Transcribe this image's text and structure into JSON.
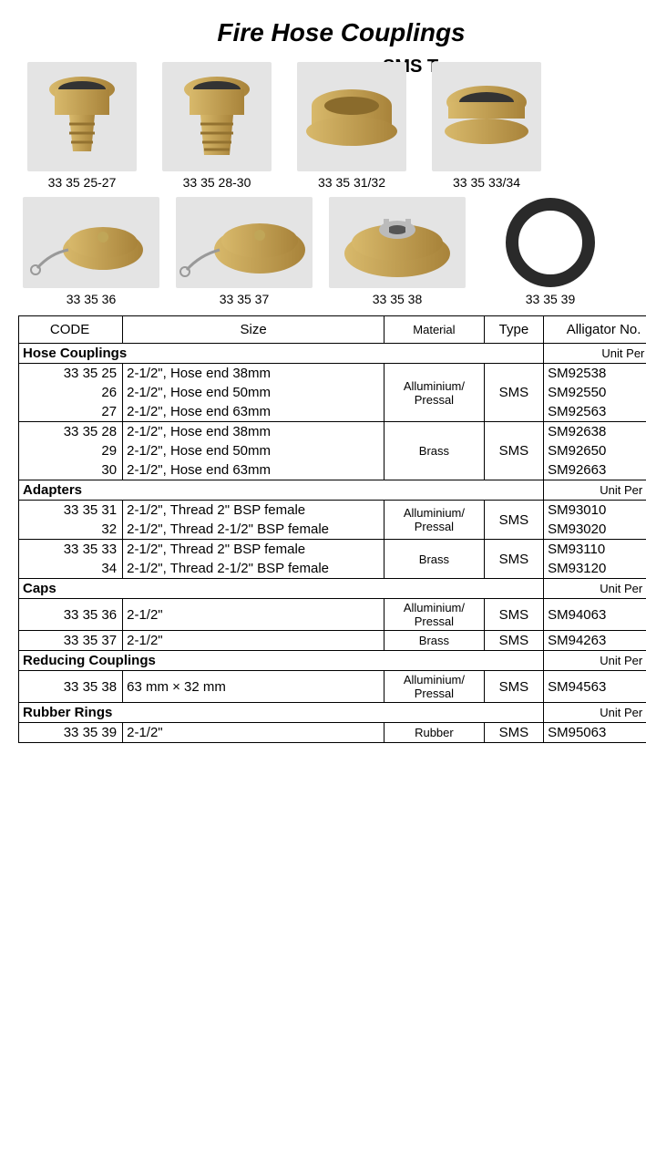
{
  "title": "Fire Hose Couplings",
  "heading_sms": "SMS Type",
  "gallery_row1": [
    {
      "caption": "33 35 25-27"
    },
    {
      "caption": "33 35 28-30"
    },
    {
      "caption": "33 35 31/32"
    },
    {
      "caption": "33 35 33/34"
    }
  ],
  "gallery_row2": [
    {
      "caption": "33 35 36"
    },
    {
      "caption": "33 35 37"
    },
    {
      "caption": "33 35 38"
    },
    {
      "caption": "33 35 39"
    }
  ],
  "columns": {
    "code": "CODE",
    "size": "Size",
    "material": "Material",
    "type": "Type",
    "alligator": "Alligator No."
  },
  "unit_label": "Unit Per Pc",
  "unit_label_pr": "Unit Per Pr",
  "sections": [
    {
      "name": "Hose Couplings",
      "unit": "pr",
      "groups": [
        {
          "material": "Alluminium/ Pressal",
          "type": "SMS",
          "rows": [
            {
              "code": "33 35 25",
              "size": "2-1/2\", Hose end 38mm",
              "alligator": "SM92538"
            },
            {
              "code": "26",
              "size": "2-1/2\", Hose end 50mm",
              "alligator": "SM92550"
            },
            {
              "code": "27",
              "size": "2-1/2\", Hose end 63mm",
              "alligator": "SM92563"
            }
          ]
        },
        {
          "material": "Brass",
          "type": "SMS",
          "rows": [
            {
              "code": "33 35 28",
              "size": "2-1/2\", Hose end 38mm",
              "alligator": "SM92638"
            },
            {
              "code": "29",
              "size": "2-1/2\", Hose end 50mm",
              "alligator": "SM92650"
            },
            {
              "code": "30",
              "size": "2-1/2\", Hose end 63mm",
              "alligator": "SM92663"
            }
          ]
        }
      ]
    },
    {
      "name": "Adapters",
      "unit": "pc",
      "groups": [
        {
          "material": "Alluminium/ Pressal",
          "type": "SMS",
          "rows": [
            {
              "code": "33 35 31",
              "size": "2-1/2\", Thread 2\" BSP female",
              "alligator": "SM93010"
            },
            {
              "code": "32",
              "size": "2-1/2\", Thread 2-1/2\" BSP female",
              "alligator": "SM93020"
            }
          ]
        },
        {
          "material": "Brass",
          "type": "SMS",
          "rows": [
            {
              "code": "33 35 33",
              "size": "2-1/2\", Thread 2\" BSP female",
              "alligator": "SM93110"
            },
            {
              "code": "34",
              "size": "2-1/2\", Thread 2-1/2\" BSP female",
              "alligator": "SM93120"
            }
          ]
        }
      ]
    },
    {
      "name": "Caps",
      "unit": "pc",
      "groups": [
        {
          "material": "Alluminium/ Pressal",
          "type": "SMS",
          "rows": [
            {
              "code": "33 35 36",
              "size": "2-1/2\"",
              "alligator": "SM94063"
            }
          ]
        },
        {
          "material": "Brass",
          "type": "SMS",
          "rows": [
            {
              "code": "33 35 37",
              "size": "2-1/2\"",
              "alligator": "SM94263"
            }
          ]
        }
      ]
    },
    {
      "name": "Reducing Couplings",
      "unit": "pc",
      "groups": [
        {
          "material": "Alluminium/ Pressal",
          "type": "SMS",
          "rows": [
            {
              "code": "33 35 38",
              "size": "63 mm × 32 mm",
              "alligator": "SM94563"
            }
          ]
        }
      ]
    },
    {
      "name": "Rubber Rings",
      "unit": "pc",
      "groups": [
        {
          "material": "Rubber",
          "type": "SMS",
          "rows": [
            {
              "code": "33 35 39",
              "size": "2-1/2\"",
              "alligator": "SM95063"
            }
          ]
        }
      ]
    }
  ],
  "colors": {
    "brass_light": "#d8b96b",
    "brass_dark": "#a8833a",
    "ring_black": "#2a2a2a",
    "img_bg": "#e4e4e4"
  }
}
